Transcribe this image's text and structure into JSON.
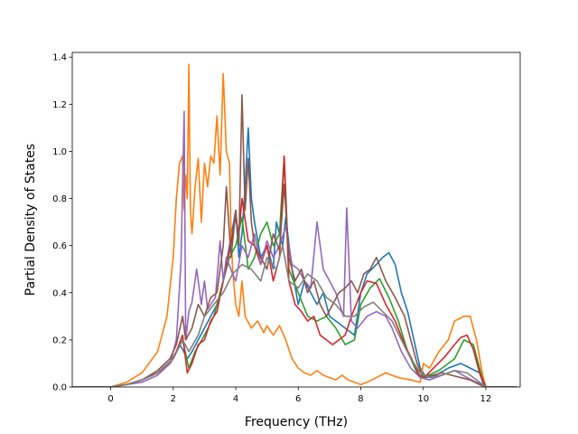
{
  "chart_data": {
    "type": "line",
    "title": "",
    "xlabel": "Frequency (THz)",
    "ylabel": "Partial Density of States",
    "xlim": [
      -1.23,
      13.1
    ],
    "ylim": [
      0.0,
      1.42
    ],
    "xticks": [
      0,
      2,
      4,
      6,
      8,
      10,
      12
    ],
    "xtick_labels": [
      "0",
      "2",
      "4",
      "6",
      "8",
      "10",
      "12"
    ],
    "yticks": [
      0.0,
      0.2,
      0.4,
      0.6,
      0.8,
      1.0,
      1.2,
      1.4
    ],
    "ytick_labels": [
      "0.0",
      "0.2",
      "0.4",
      "0.6",
      "0.8",
      "1.0",
      "1.2",
      "1.4"
    ],
    "grid": false,
    "series": [
      {
        "color": "#1f77b4",
        "x": [
          -1.25,
          -0.5,
          0,
          0.5,
          1.0,
          1.5,
          1.9,
          2.1,
          2.2,
          2.3,
          2.45,
          2.6,
          2.8,
          3.0,
          3.2,
          3.4,
          3.6,
          3.8,
          4.0,
          4.1,
          4.2,
          4.3,
          4.4,
          4.5,
          4.6,
          4.8,
          5.0,
          5.2,
          5.3,
          5.5,
          5.6,
          5.8,
          6.0,
          6.2,
          6.4,
          6.6,
          6.8,
          7.0,
          7.2,
          7.5,
          7.8,
          8.0,
          8.2,
          8.5,
          8.7,
          8.9,
          9.1,
          9.3,
          9.5,
          9.7,
          9.9,
          10.1,
          10.4,
          10.8,
          11.2,
          11.5,
          11.8,
          11.9,
          12.0,
          13.0
        ],
        "y": [
          0,
          0,
          0,
          0.01,
          0.03,
          0.06,
          0.1,
          0.15,
          0.18,
          0.16,
          0.12,
          0.15,
          0.2,
          0.25,
          0.3,
          0.35,
          0.45,
          0.6,
          0.75,
          0.55,
          0.65,
          0.85,
          1.1,
          0.8,
          0.7,
          0.55,
          0.6,
          0.5,
          0.7,
          0.6,
          0.72,
          0.5,
          0.35,
          0.45,
          0.4,
          0.35,
          0.4,
          0.3,
          0.28,
          0.25,
          0.22,
          0.4,
          0.48,
          0.52,
          0.55,
          0.57,
          0.52,
          0.4,
          0.32,
          0.2,
          0.08,
          0.04,
          0.05,
          0.08,
          0.1,
          0.08,
          0.06,
          0.02,
          0,
          0
        ]
      },
      {
        "color": "#ff7f0e",
        "x": [
          -1.25,
          -0.5,
          0,
          0.5,
          1.0,
          1.5,
          1.8,
          2.0,
          2.1,
          2.2,
          2.3,
          2.35,
          2.4,
          2.45,
          2.5,
          2.55,
          2.6,
          2.7,
          2.8,
          2.9,
          3.0,
          3.1,
          3.2,
          3.3,
          3.4,
          3.5,
          3.6,
          3.7,
          3.8,
          3.85,
          3.9,
          4.0,
          4.1,
          4.2,
          4.3,
          4.5,
          4.7,
          4.9,
          5.0,
          5.2,
          5.4,
          5.6,
          5.8,
          6.0,
          6.2,
          6.4,
          6.6,
          6.8,
          7.0,
          7.2,
          7.4,
          7.6,
          7.8,
          8.0,
          8.2,
          8.5,
          8.8,
          9.2,
          9.6,
          9.9,
          10.0,
          10.2,
          10.5,
          10.8,
          11.0,
          11.3,
          11.5,
          11.7,
          11.9,
          12.0,
          13.0
        ],
        "y": [
          0,
          0,
          0,
          0.02,
          0.06,
          0.15,
          0.3,
          0.55,
          0.8,
          0.95,
          0.98,
          0.75,
          0.9,
          0.8,
          1.37,
          0.75,
          0.65,
          0.85,
          0.97,
          0.7,
          0.95,
          0.85,
          0.98,
          0.95,
          1.15,
          0.9,
          1.33,
          1.0,
          0.95,
          0.65,
          0.5,
          0.35,
          0.3,
          0.45,
          0.3,
          0.25,
          0.28,
          0.23,
          0.26,
          0.22,
          0.26,
          0.2,
          0.12,
          0.08,
          0.06,
          0.05,
          0.07,
          0.05,
          0.04,
          0.03,
          0.05,
          0.03,
          0.02,
          0.01,
          0.02,
          0.04,
          0.06,
          0.04,
          0.03,
          0.02,
          0.1,
          0.08,
          0.15,
          0.2,
          0.28,
          0.3,
          0.3,
          0.2,
          0.05,
          0,
          0
        ]
      },
      {
        "color": "#2ca02c",
        "x": [
          -1.25,
          0,
          0.5,
          1.0,
          1.5,
          2.0,
          2.3,
          2.5,
          2.7,
          3.0,
          3.3,
          3.6,
          3.8,
          4.0,
          4.2,
          4.4,
          4.6,
          4.8,
          5.0,
          5.2,
          5.4,
          5.55,
          5.7,
          6.0,
          6.3,
          6.6,
          6.9,
          7.2,
          7.5,
          7.8,
          8.0,
          8.3,
          8.6,
          8.9,
          9.2,
          9.5,
          9.8,
          10.0,
          10.5,
          11.0,
          11.3,
          11.6,
          11.9,
          12.0,
          13.0
        ],
        "y": [
          0,
          0,
          0.01,
          0.03,
          0.06,
          0.12,
          0.2,
          0.08,
          0.15,
          0.22,
          0.3,
          0.45,
          0.55,
          0.6,
          0.72,
          0.5,
          0.55,
          0.65,
          0.7,
          0.6,
          0.65,
          0.98,
          0.5,
          0.4,
          0.3,
          0.28,
          0.3,
          0.25,
          0.18,
          0.2,
          0.35,
          0.42,
          0.46,
          0.38,
          0.28,
          0.15,
          0.06,
          0.04,
          0.07,
          0.12,
          0.2,
          0.18,
          0.03,
          0,
          0
        ]
      },
      {
        "color": "#d62728",
        "x": [
          -1.25,
          0,
          0.5,
          1.0,
          1.5,
          1.9,
          2.1,
          2.3,
          2.45,
          2.6,
          2.8,
          3.0,
          3.2,
          3.4,
          3.6,
          3.8,
          4.0,
          4.1,
          4.2,
          4.4,
          4.6,
          4.8,
          5.0,
          5.2,
          5.4,
          5.55,
          5.7,
          5.9,
          6.1,
          6.3,
          6.5,
          6.7,
          6.9,
          7.1,
          7.3,
          7.5,
          7.7,
          8.0,
          8.2,
          8.5,
          8.8,
          9.1,
          9.4,
          9.7,
          9.9,
          10.1,
          10.4,
          10.7,
          11.0,
          11.2,
          11.4,
          11.6,
          11.8,
          12.0,
          13.0
        ],
        "y": [
          0,
          0,
          0.01,
          0.03,
          0.06,
          0.1,
          0.15,
          0.22,
          0.06,
          0.1,
          0.18,
          0.2,
          0.28,
          0.32,
          0.45,
          0.58,
          0.72,
          0.65,
          0.8,
          0.62,
          0.6,
          0.52,
          0.6,
          0.45,
          0.55,
          0.98,
          0.45,
          0.35,
          0.32,
          0.28,
          0.3,
          0.22,
          0.2,
          0.18,
          0.2,
          0.22,
          0.3,
          0.4,
          0.45,
          0.44,
          0.35,
          0.28,
          0.18,
          0.1,
          0.04,
          0.05,
          0.09,
          0.13,
          0.18,
          0.21,
          0.22,
          0.16,
          0.06,
          0,
          0
        ]
      },
      {
        "color": "#9467bd",
        "x": [
          -1.25,
          0,
          0.5,
          1.0,
          1.5,
          1.9,
          2.1,
          2.25,
          2.35,
          2.4,
          2.5,
          2.6,
          2.75,
          2.9,
          3.0,
          3.1,
          3.2,
          3.35,
          3.5,
          3.6,
          3.7,
          3.9,
          4.0,
          4.2,
          4.4,
          4.6,
          4.8,
          5.0,
          5.2,
          5.4,
          5.6,
          5.8,
          6.0,
          6.2,
          6.4,
          6.6,
          6.8,
          7.0,
          7.2,
          7.45,
          7.55,
          7.7,
          7.9,
          8.2,
          8.5,
          8.8,
          9.0,
          9.3,
          9.6,
          9.9,
          10.2,
          10.6,
          11.0,
          11.4,
          11.7,
          11.9,
          12.0,
          13.0
        ],
        "y": [
          0,
          0,
          0.01,
          0.02,
          0.05,
          0.1,
          0.2,
          0.53,
          1.17,
          0.2,
          0.32,
          0.36,
          0.5,
          0.35,
          0.45,
          0.33,
          0.35,
          0.38,
          0.62,
          0.45,
          0.55,
          0.48,
          0.45,
          0.6,
          0.55,
          0.65,
          0.52,
          0.62,
          0.55,
          0.6,
          0.68,
          0.52,
          0.5,
          0.45,
          0.42,
          0.7,
          0.5,
          0.45,
          0.4,
          0.3,
          0.76,
          0.28,
          0.25,
          0.3,
          0.32,
          0.3,
          0.25,
          0.15,
          0.08,
          0.04,
          0.03,
          0.05,
          0.07,
          0.04,
          0.02,
          0.01,
          0,
          0
        ]
      },
      {
        "color": "#8c564b",
        "x": [
          -1.25,
          0,
          0.5,
          1.0,
          1.5,
          1.9,
          2.1,
          2.3,
          2.4,
          2.6,
          2.8,
          3.0,
          3.2,
          3.4,
          3.6,
          3.7,
          3.85,
          4.0,
          4.1,
          4.2,
          4.3,
          4.4,
          4.5,
          4.6,
          4.8,
          5.0,
          5.2,
          5.4,
          5.55,
          5.7,
          5.9,
          6.1,
          6.3,
          6.5,
          6.7,
          6.9,
          7.1,
          7.3,
          7.5,
          7.7,
          7.9,
          8.1,
          8.3,
          8.5,
          8.8,
          9.1,
          9.4,
          9.6,
          9.8,
          10.0,
          10.3,
          10.6,
          10.9,
          11.2,
          11.5,
          11.8,
          12.0,
          13.0
        ],
        "y": [
          0,
          0,
          0.01,
          0.03,
          0.07,
          0.12,
          0.18,
          0.3,
          0.2,
          0.25,
          0.35,
          0.3,
          0.38,
          0.4,
          0.6,
          0.85,
          0.55,
          0.75,
          0.6,
          1.24,
          0.75,
          0.97,
          0.7,
          0.6,
          0.55,
          0.5,
          0.65,
          0.58,
          0.86,
          0.55,
          0.45,
          0.5,
          0.4,
          0.45,
          0.35,
          0.3,
          0.35,
          0.4,
          0.42,
          0.45,
          0.4,
          0.48,
          0.5,
          0.55,
          0.45,
          0.38,
          0.3,
          0.2,
          0.1,
          0.04,
          0.05,
          0.06,
          0.05,
          0.04,
          0.03,
          0.01,
          0,
          0
        ]
      },
      {
        "color": "#7f7f7f",
        "x": [
          -1.25,
          0,
          0.5,
          1.0,
          1.5,
          2.0,
          2.3,
          2.5,
          2.8,
          3.0,
          3.3,
          3.6,
          3.9,
          4.2,
          4.5,
          4.8,
          5.0,
          5.3,
          5.5,
          5.7,
          6.0,
          6.3,
          6.6,
          6.9,
          7.2,
          7.5,
          7.8,
          8.1,
          8.4,
          8.7,
          9.0,
          9.3,
          9.6,
          9.9,
          10.2,
          10.6,
          11.0,
          11.4,
          11.8,
          12.0,
          13.0
        ],
        "y": [
          0,
          0,
          0.01,
          0.03,
          0.06,
          0.12,
          0.2,
          0.15,
          0.22,
          0.3,
          0.35,
          0.4,
          0.48,
          0.52,
          0.5,
          0.45,
          0.55,
          0.5,
          0.6,
          0.45,
          0.42,
          0.48,
          0.45,
          0.38,
          0.35,
          0.3,
          0.3,
          0.34,
          0.36,
          0.32,
          0.28,
          0.2,
          0.12,
          0.06,
          0.04,
          0.05,
          0.07,
          0.06,
          0.02,
          0,
          0
        ]
      }
    ]
  }
}
